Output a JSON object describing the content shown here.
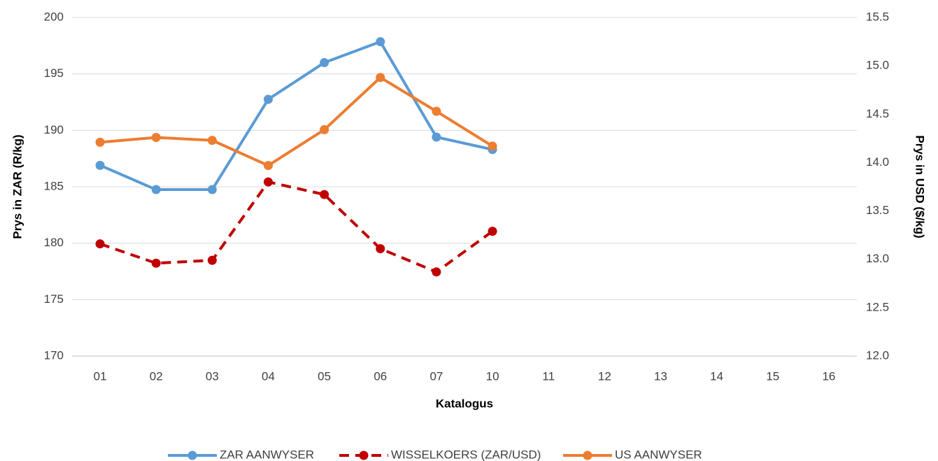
{
  "chart_data": {
    "type": "line",
    "x_label": "Katalogus",
    "y_label": "Prys in ZAR (R/kg)",
    "y2_label": "Prys in USD ($/kg)",
    "categories": [
      "01",
      "02",
      "03",
      "04",
      "05",
      "06",
      "07",
      "10",
      "11",
      "12",
      "13",
      "14",
      "15",
      "16"
    ],
    "series": [
      {
        "name": "ZAR AANWYSER",
        "color": "#5b9bd5",
        "dash": false,
        "values": [
          186.9,
          184.75,
          184.75,
          192.75,
          196.0,
          197.85,
          189.4,
          188.3,
          null,
          null,
          null,
          null,
          null,
          null
        ]
      },
      {
        "name": "WISSELKOERS (ZAR/USD)",
        "color": "#c00000",
        "dash": true,
        "axis": "y2",
        "values": [
          13.16,
          12.96,
          12.99,
          13.8,
          13.67,
          13.11,
          12.87,
          13.29,
          null,
          null,
          null,
          null,
          null,
          null
        ]
      },
      {
        "name": "US AANWYSER",
        "color": "#ed7d31",
        "dash": false,
        "axis": "y2",
        "values": [
          14.21,
          14.26,
          14.23,
          13.97,
          14.34,
          14.88,
          14.53,
          14.17,
          null,
          null,
          null,
          null,
          null,
          null
        ]
      }
    ],
    "ylim": [
      170,
      200
    ],
    "yticks": [
      170,
      175,
      180,
      185,
      190,
      195,
      200
    ],
    "y2lim": [
      12.0,
      15.5
    ],
    "y2ticks": [
      {
        "value": 12.0,
        "label": "12.0"
      },
      12.5,
      {
        "value": 13.0,
        "label": "13.0"
      },
      13.5,
      {
        "value": 14.0,
        "label": "14.0"
      },
      14.5,
      {
        "value": 15.0,
        "label": "15.0"
      },
      15.5
    ],
    "grid": true,
    "legend": "bottom"
  }
}
